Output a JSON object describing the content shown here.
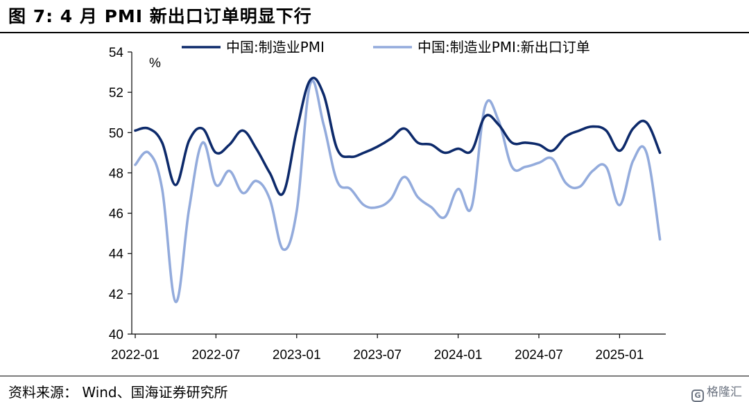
{
  "figure": {
    "title": "图 7:  4 月 PMI 新出口订单明显下行",
    "source": "资料来源：  Wind、国海证券研究所",
    "watermark": "格隆汇"
  },
  "chart_data": {
    "type": "line",
    "unit_label": "%",
    "ylim": [
      40,
      54
    ],
    "y_ticks": [
      40,
      42,
      44,
      46,
      48,
      50,
      52,
      54
    ],
    "x_ticks": [
      "2022-01",
      "2022-07",
      "2023-01",
      "2023-07",
      "2024-01",
      "2024-07",
      "2025-01"
    ],
    "x": [
      "2022-01",
      "2022-02",
      "2022-03",
      "2022-04",
      "2022-05",
      "2022-06",
      "2022-07",
      "2022-08",
      "2022-09",
      "2022-10",
      "2022-11",
      "2022-12",
      "2023-01",
      "2023-02",
      "2023-03",
      "2023-04",
      "2023-05",
      "2023-06",
      "2023-07",
      "2023-08",
      "2023-09",
      "2023-10",
      "2023-11",
      "2023-12",
      "2024-01",
      "2024-02",
      "2024-03",
      "2024-04",
      "2024-05",
      "2024-06",
      "2024-07",
      "2024-08",
      "2024-09",
      "2024-10",
      "2024-11",
      "2024-12",
      "2025-01",
      "2025-02",
      "2025-03",
      "2025-04"
    ],
    "grid": false,
    "legend_position": "top",
    "series": [
      {
        "name": "中国:制造业PMI",
        "color": "#0d2a6b",
        "values": [
          50.1,
          50.2,
          49.5,
          47.4,
          49.6,
          50.2,
          49.0,
          49.4,
          50.1,
          49.2,
          48.0,
          47.0,
          50.1,
          52.6,
          51.9,
          49.2,
          48.8,
          49.0,
          49.3,
          49.7,
          50.2,
          49.5,
          49.4,
          49.0,
          49.2,
          49.1,
          50.8,
          50.4,
          49.5,
          49.5,
          49.4,
          49.1,
          49.8,
          50.1,
          50.3,
          50.1,
          49.1,
          50.2,
          50.5,
          49.0
        ]
      },
      {
        "name": "中国:制造业PMI:新出口订单",
        "color": "#93abdc",
        "values": [
          48.4,
          49.0,
          47.2,
          41.6,
          46.2,
          49.5,
          47.4,
          48.1,
          47.0,
          47.6,
          46.7,
          44.2,
          46.1,
          52.4,
          50.4,
          47.6,
          47.2,
          46.4,
          46.3,
          46.7,
          47.8,
          46.8,
          46.3,
          45.8,
          47.2,
          46.3,
          51.3,
          50.6,
          48.3,
          48.3,
          48.5,
          48.7,
          47.5,
          47.3,
          48.1,
          48.3,
          46.4,
          48.6,
          49.0,
          44.7
        ]
      }
    ]
  }
}
